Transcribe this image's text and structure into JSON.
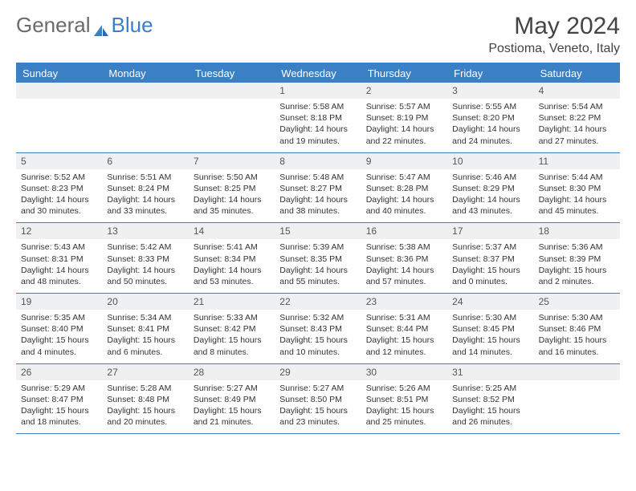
{
  "brand": {
    "part1": "General",
    "part2": "Blue"
  },
  "title": "May 2024",
  "location": "Postioma, Veneto, Italy",
  "colors": {
    "accent": "#3b7fc4",
    "header_bg": "#3b7fc4",
    "daybar_bg": "#eef0f2",
    "text": "#333333",
    "brand_gray": "#6b6b6b",
    "title_fontsize": 30,
    "location_fontsize": 16,
    "dayhead_fontsize": 13,
    "info_fontsize": 10.5
  },
  "dayNames": [
    "Sunday",
    "Monday",
    "Tuesday",
    "Wednesday",
    "Thursday",
    "Friday",
    "Saturday"
  ],
  "weeks": [
    [
      null,
      null,
      null,
      {
        "d": "1",
        "sr": "5:58 AM",
        "ss": "8:18 PM",
        "dl": "14 hours and 19 minutes."
      },
      {
        "d": "2",
        "sr": "5:57 AM",
        "ss": "8:19 PM",
        "dl": "14 hours and 22 minutes."
      },
      {
        "d": "3",
        "sr": "5:55 AM",
        "ss": "8:20 PM",
        "dl": "14 hours and 24 minutes."
      },
      {
        "d": "4",
        "sr": "5:54 AM",
        "ss": "8:22 PM",
        "dl": "14 hours and 27 minutes."
      }
    ],
    [
      {
        "d": "5",
        "sr": "5:52 AM",
        "ss": "8:23 PM",
        "dl": "14 hours and 30 minutes."
      },
      {
        "d": "6",
        "sr": "5:51 AM",
        "ss": "8:24 PM",
        "dl": "14 hours and 33 minutes."
      },
      {
        "d": "7",
        "sr": "5:50 AM",
        "ss": "8:25 PM",
        "dl": "14 hours and 35 minutes."
      },
      {
        "d": "8",
        "sr": "5:48 AM",
        "ss": "8:27 PM",
        "dl": "14 hours and 38 minutes."
      },
      {
        "d": "9",
        "sr": "5:47 AM",
        "ss": "8:28 PM",
        "dl": "14 hours and 40 minutes."
      },
      {
        "d": "10",
        "sr": "5:46 AM",
        "ss": "8:29 PM",
        "dl": "14 hours and 43 minutes."
      },
      {
        "d": "11",
        "sr": "5:44 AM",
        "ss": "8:30 PM",
        "dl": "14 hours and 45 minutes."
      }
    ],
    [
      {
        "d": "12",
        "sr": "5:43 AM",
        "ss": "8:31 PM",
        "dl": "14 hours and 48 minutes."
      },
      {
        "d": "13",
        "sr": "5:42 AM",
        "ss": "8:33 PM",
        "dl": "14 hours and 50 minutes."
      },
      {
        "d": "14",
        "sr": "5:41 AM",
        "ss": "8:34 PM",
        "dl": "14 hours and 53 minutes."
      },
      {
        "d": "15",
        "sr": "5:39 AM",
        "ss": "8:35 PM",
        "dl": "14 hours and 55 minutes."
      },
      {
        "d": "16",
        "sr": "5:38 AM",
        "ss": "8:36 PM",
        "dl": "14 hours and 57 minutes."
      },
      {
        "d": "17",
        "sr": "5:37 AM",
        "ss": "8:37 PM",
        "dl": "15 hours and 0 minutes."
      },
      {
        "d": "18",
        "sr": "5:36 AM",
        "ss": "8:39 PM",
        "dl": "15 hours and 2 minutes."
      }
    ],
    [
      {
        "d": "19",
        "sr": "5:35 AM",
        "ss": "8:40 PM",
        "dl": "15 hours and 4 minutes."
      },
      {
        "d": "20",
        "sr": "5:34 AM",
        "ss": "8:41 PM",
        "dl": "15 hours and 6 minutes."
      },
      {
        "d": "21",
        "sr": "5:33 AM",
        "ss": "8:42 PM",
        "dl": "15 hours and 8 minutes."
      },
      {
        "d": "22",
        "sr": "5:32 AM",
        "ss": "8:43 PM",
        "dl": "15 hours and 10 minutes."
      },
      {
        "d": "23",
        "sr": "5:31 AM",
        "ss": "8:44 PM",
        "dl": "15 hours and 12 minutes."
      },
      {
        "d": "24",
        "sr": "5:30 AM",
        "ss": "8:45 PM",
        "dl": "15 hours and 14 minutes."
      },
      {
        "d": "25",
        "sr": "5:30 AM",
        "ss": "8:46 PM",
        "dl": "15 hours and 16 minutes."
      }
    ],
    [
      {
        "d": "26",
        "sr": "5:29 AM",
        "ss": "8:47 PM",
        "dl": "15 hours and 18 minutes."
      },
      {
        "d": "27",
        "sr": "5:28 AM",
        "ss": "8:48 PM",
        "dl": "15 hours and 20 minutes."
      },
      {
        "d": "28",
        "sr": "5:27 AM",
        "ss": "8:49 PM",
        "dl": "15 hours and 21 minutes."
      },
      {
        "d": "29",
        "sr": "5:27 AM",
        "ss": "8:50 PM",
        "dl": "15 hours and 23 minutes."
      },
      {
        "d": "30",
        "sr": "5:26 AM",
        "ss": "8:51 PM",
        "dl": "15 hours and 25 minutes."
      },
      {
        "d": "31",
        "sr": "5:25 AM",
        "ss": "8:52 PM",
        "dl": "15 hours and 26 minutes."
      },
      null
    ]
  ],
  "labels": {
    "sunrise": "Sunrise:",
    "sunset": "Sunset:",
    "daylight": "Daylight:"
  }
}
